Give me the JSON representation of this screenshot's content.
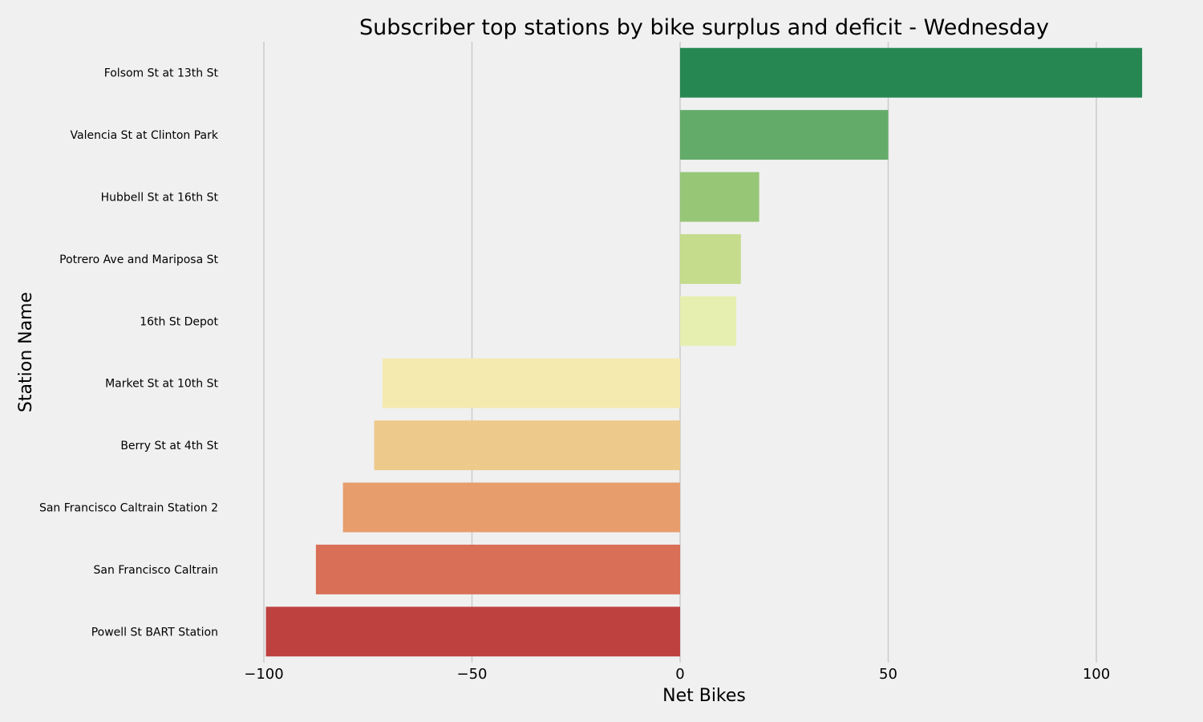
{
  "chart_data": {
    "type": "bar",
    "orientation": "horizontal",
    "title": "Subscriber top stations by bike surplus and deficit - Wednesday",
    "xlabel": "Net Bikes",
    "ylabel": "Station Name",
    "xlim": [
      -100,
      112
    ],
    "xticks": [
      -100,
      -50,
      0,
      50,
      100
    ],
    "xtick_labels": [
      "−100",
      "−50",
      "0",
      "50",
      "100"
    ],
    "grid": "vertical",
    "categories": [
      "Folsom St at 13th St",
      "Valencia St at Clinton Park",
      "Hubbell St at 16th St",
      "Potrero Ave and Mariposa St",
      "16th St Depot",
      "Market St at 10th St",
      "Berry St at 4th St",
      "San Francisco Caltrain Station 2",
      "San Francisco Caltrain",
      "Powell St BART Station"
    ],
    "values": [
      111,
      50,
      19,
      14.6,
      13.5,
      -71.5,
      -73.5,
      -81,
      -87.5,
      -99.5
    ],
    "colors": [
      "#268752",
      "#63ab69",
      "#96c676",
      "#c4dc8b",
      "#e6efb0",
      "#f4eab0",
      "#eec98c",
      "#e79d6c",
      "#d96f56",
      "#be4140"
    ]
  }
}
